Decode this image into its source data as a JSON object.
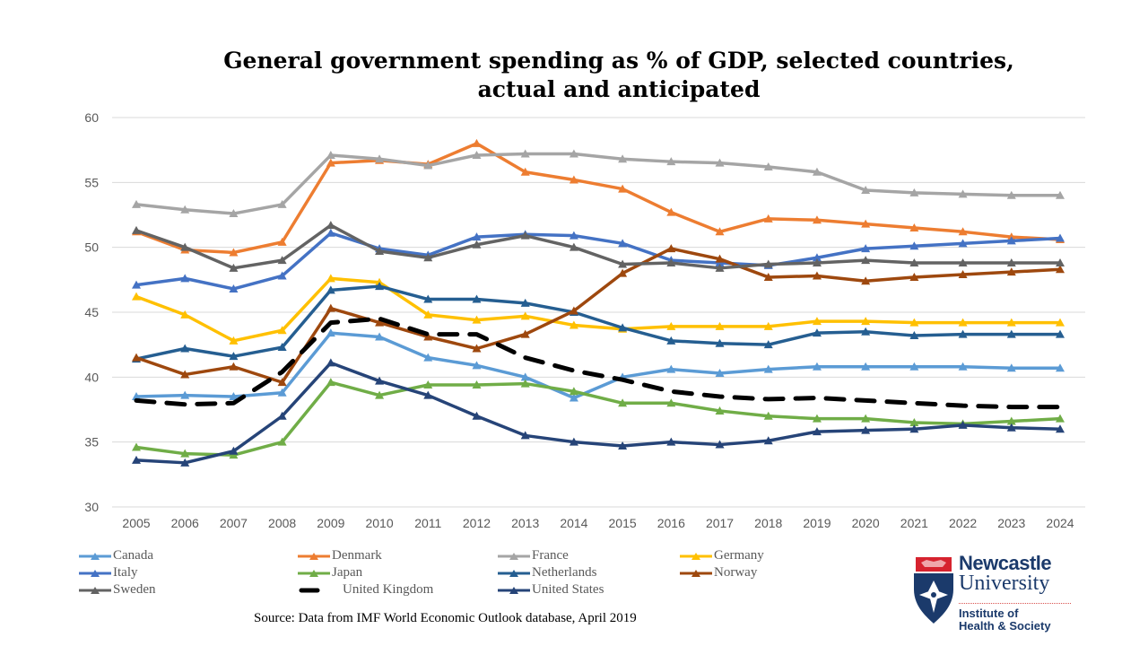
{
  "chart_data": {
    "type": "line",
    "title": "General government spending as % of GDP, selected countries, actual and anticipated",
    "title_lines": [
      "General government spending as % of GDP, selected countries,",
      "actual and anticipated"
    ],
    "xlabel": "",
    "ylabel": "",
    "ylim": [
      30,
      60
    ],
    "yticks": [
      30,
      35,
      40,
      45,
      50,
      55,
      60
    ],
    "grid": true,
    "legend_position": "bottom",
    "categories": [
      "2005",
      "2006",
      "2007",
      "2008",
      "2009",
      "2010",
      "2011",
      "2012",
      "2013",
      "2014",
      "2015",
      "2016",
      "2017",
      "2018",
      "2019",
      "2020",
      "2021",
      "2022",
      "2023",
      "2024"
    ],
    "series": [
      {
        "name": "Canada",
        "color": "#5b9bd5",
        "dashed": false,
        "values": [
          38.5,
          38.6,
          38.5,
          38.8,
          43.4,
          43.1,
          41.5,
          40.9,
          40.0,
          38.4,
          40.0,
          40.6,
          40.3,
          40.6,
          40.8,
          40.8,
          40.8,
          40.8,
          40.7,
          40.7
        ]
      },
      {
        "name": "Denmark",
        "color": "#ed7d31",
        "dashed": false,
        "values": [
          51.2,
          49.8,
          49.6,
          50.4,
          56.5,
          56.7,
          56.4,
          58.0,
          55.8,
          55.2,
          54.5,
          52.7,
          51.2,
          52.2,
          52.1,
          51.8,
          51.5,
          51.2,
          50.8,
          50.6
        ]
      },
      {
        "name": "France",
        "color": "#a5a5a5",
        "dashed": false,
        "values": [
          53.3,
          52.9,
          52.6,
          53.3,
          57.1,
          56.8,
          56.3,
          57.1,
          57.2,
          57.2,
          56.8,
          56.6,
          56.5,
          56.2,
          55.8,
          54.4,
          54.2,
          54.1,
          54.0,
          54.0
        ]
      },
      {
        "name": "Germany",
        "color": "#ffc000",
        "dashed": false,
        "values": [
          46.2,
          44.8,
          42.8,
          43.6,
          47.6,
          47.3,
          44.8,
          44.4,
          44.7,
          44.0,
          43.7,
          43.9,
          43.9,
          43.9,
          44.3,
          44.3,
          44.2,
          44.2,
          44.2,
          44.2
        ]
      },
      {
        "name": "Italy",
        "color": "#4472c4",
        "dashed": false,
        "values": [
          47.1,
          47.6,
          46.8,
          47.8,
          51.1,
          49.9,
          49.4,
          50.8,
          51.0,
          50.9,
          50.3,
          49.0,
          48.8,
          48.6,
          49.2,
          49.9,
          50.1,
          50.3,
          50.5,
          50.7
        ]
      },
      {
        "name": "Japan",
        "color": "#70ad47",
        "dashed": false,
        "values": [
          34.6,
          34.1,
          34.0,
          35.0,
          39.6,
          38.6,
          39.4,
          39.4,
          39.5,
          38.9,
          38.0,
          38.0,
          37.4,
          37.0,
          36.8,
          36.8,
          36.5,
          36.4,
          36.6,
          36.8
        ]
      },
      {
        "name": "Netherlands",
        "color": "#255e91",
        "dashed": false,
        "values": [
          41.4,
          42.2,
          41.6,
          42.3,
          46.7,
          47.0,
          46.0,
          46.0,
          45.7,
          45.0,
          43.8,
          42.8,
          42.6,
          42.5,
          43.4,
          43.5,
          43.2,
          43.3,
          43.3,
          43.3
        ]
      },
      {
        "name": "Norway",
        "color": "#9e480e",
        "dashed": false,
        "values": [
          41.5,
          40.2,
          40.8,
          39.6,
          45.3,
          44.2,
          43.1,
          42.2,
          43.3,
          45.1,
          48.0,
          49.9,
          49.1,
          47.7,
          47.8,
          47.4,
          47.7,
          47.9,
          48.1,
          48.3
        ]
      },
      {
        "name": "Sweden",
        "color": "#636363",
        "dashed": false,
        "values": [
          51.3,
          50.0,
          48.4,
          49.0,
          51.7,
          49.7,
          49.2,
          50.2,
          50.9,
          50.0,
          48.7,
          48.8,
          48.4,
          48.7,
          48.8,
          49.0,
          48.8,
          48.8,
          48.8,
          48.8
        ]
      },
      {
        "name": "United Kingdom",
        "color": "#000000",
        "dashed": true,
        "values": [
          38.2,
          37.9,
          38.0,
          40.4,
          44.2,
          44.5,
          43.3,
          43.3,
          41.5,
          40.5,
          39.8,
          38.9,
          38.5,
          38.3,
          38.4,
          38.2,
          38.0,
          37.8,
          37.7,
          37.7
        ]
      },
      {
        "name": "United States",
        "color": "#264478",
        "dashed": false,
        "values": [
          33.6,
          33.4,
          34.3,
          37.0,
          41.1,
          39.7,
          38.6,
          37.0,
          35.5,
          35.0,
          34.7,
          35.0,
          34.8,
          35.1,
          35.8,
          35.9,
          36.0,
          36.3,
          36.1,
          36.0
        ]
      }
    ]
  },
  "source": "Source: Data from IMF World Economic Outlook database, April 2019",
  "logo": {
    "line1": "Newcastle",
    "line2": "University",
    "institute_line1": "Institute of",
    "institute_line2": "Health & Society"
  }
}
